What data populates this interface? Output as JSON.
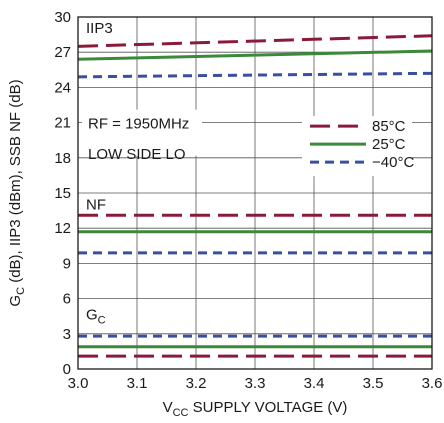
{
  "chart_data": {
    "type": "line",
    "xlabel_main": "V",
    "xlabel_sub": "CC",
    "xlabel_rest": " SUPPLY VOLTAGE (V)",
    "ylabel_g": "G",
    "ylabel_g_sub": "C",
    "ylabel_rest": " (dB), IIP3 (dBm), SSB NF (dB)",
    "xlim": [
      3.0,
      3.6
    ],
    "ylim": [
      0,
      30
    ],
    "xticks": [
      "3.0",
      "3.1",
      "3.2",
      "3.3",
      "3.4",
      "3.5",
      "3.6"
    ],
    "xtick_values": [
      3.0,
      3.1,
      3.2,
      3.3,
      3.4,
      3.5,
      3.6
    ],
    "yticks": [
      "0",
      "3",
      "6",
      "9",
      "12",
      "15",
      "18",
      "21",
      "24",
      "27",
      "30"
    ],
    "ytick_values": [
      0,
      3,
      6,
      9,
      12,
      15,
      18,
      21,
      24,
      27,
      30
    ],
    "grid": true,
    "annotations": {
      "iip3": "IIP3",
      "nf": "NF",
      "gc_main": "G",
      "gc_sub": "C",
      "conditions_line1": "RF = 1950MHz",
      "conditions_line2": "LOW SIDE LO"
    },
    "legend_position": "middle-right",
    "series": [
      {
        "name": "85°C",
        "group": "IIP3",
        "color": "#8b1a3a",
        "dash": "long",
        "x": [
          3.0,
          3.6
        ],
        "y": [
          27.5,
          28.4
        ]
      },
      {
        "name": "25°C",
        "group": "IIP3",
        "color": "#3a8a3a",
        "dash": "solid",
        "x": [
          3.0,
          3.6
        ],
        "y": [
          26.4,
          27.1
        ]
      },
      {
        "name": "−40°C",
        "group": "IIP3",
        "color": "#3a4fa0",
        "dash": "short",
        "x": [
          3.0,
          3.6
        ],
        "y": [
          24.9,
          25.2
        ]
      },
      {
        "name": "85°C",
        "group": "NF",
        "color": "#8b1a3a",
        "dash": "long",
        "x": [
          3.0,
          3.6
        ],
        "y": [
          13.1,
          13.1
        ]
      },
      {
        "name": "25°C",
        "group": "NF",
        "color": "#3a8a3a",
        "dash": "solid",
        "x": [
          3.0,
          3.6
        ],
        "y": [
          11.7,
          11.7
        ]
      },
      {
        "name": "−40°C",
        "group": "NF",
        "color": "#3a4fa0",
        "dash": "short",
        "x": [
          3.0,
          3.6
        ],
        "y": [
          9.9,
          9.9
        ]
      },
      {
        "name": "−40°C",
        "group": "GC",
        "color": "#3a4fa0",
        "dash": "short",
        "x": [
          3.0,
          3.6
        ],
        "y": [
          2.8,
          2.8
        ]
      },
      {
        "name": "25°C",
        "group": "GC",
        "color": "#3a8a3a",
        "dash": "solid",
        "x": [
          3.0,
          3.6
        ],
        "y": [
          1.9,
          1.9
        ]
      },
      {
        "name": "85°C",
        "group": "GC",
        "color": "#8b1a3a",
        "dash": "long",
        "x": [
          3.0,
          3.6
        ],
        "y": [
          1.1,
          1.1
        ]
      }
    ],
    "legend": [
      {
        "label": "85°C",
        "color": "#8b1a3a",
        "dash": "long"
      },
      {
        "label": "25°C",
        "color": "#3a8a3a",
        "dash": "solid"
      },
      {
        "label": "−40°C",
        "color": "#3a4fa0",
        "dash": "short"
      }
    ]
  }
}
